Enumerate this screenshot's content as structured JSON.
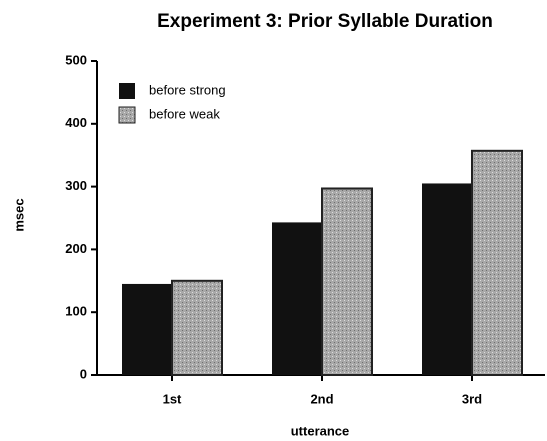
{
  "chart_data": {
    "type": "bar",
    "title": "Experiment 3: Prior Syllable Duration",
    "xlabel": "utterance",
    "ylabel": "msec",
    "categories": [
      "1st",
      "2nd",
      "3rd"
    ],
    "series": [
      {
        "name": "before strong",
        "color": "#111111",
        "values": [
          145,
          243,
          305
        ]
      },
      {
        "name": "before weak",
        "color": "#a8a8a8",
        "values": [
          150,
          297,
          357
        ]
      }
    ],
    "ylim": [
      0,
      500
    ],
    "yticks": [
      0,
      100,
      200,
      300,
      400,
      500
    ],
    "legend": "upper left"
  }
}
